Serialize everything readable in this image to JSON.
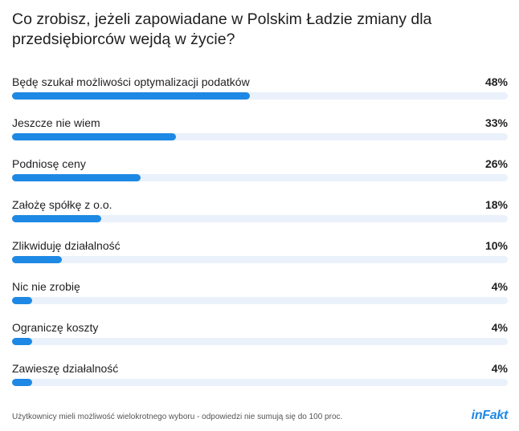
{
  "title": "Co zrobisz, jeżeli zapowiadane w Polskim Ładzie zmiany dla przedsiębiorców wejdą w życie?",
  "footnote": "Użytkownicy mieli możliwość wielokrotnego wyboru - odpowiedzi nie sumują się do 100 proc.",
  "brand": "inFakt",
  "colors": {
    "bar_fill": "#1e88e5",
    "bar_track": "#eaf1fb",
    "text": "#1f1f1f"
  },
  "chart_data": {
    "type": "bar",
    "orientation": "horizontal",
    "title": "Co zrobisz, jeżeli zapowiadane w Polskim Ładzie zmiany dla przedsiębiorców wejdą w życie?",
    "xlim": [
      0,
      100
    ],
    "unit": "%",
    "categories": [
      "Będę szukał możliwości optymalizacji podatków",
      "Jeszcze nie wiem",
      "Podniosę ceny",
      "Założę spółkę z o.o.",
      "Zlikwiduję działalność",
      "Nic nie zrobię",
      "Ograniczę koszty",
      "Zawieszę działalność"
    ],
    "values": [
      48,
      33,
      26,
      18,
      10,
      4,
      4,
      4
    ],
    "value_labels": [
      "48%",
      "33%",
      "26%",
      "18%",
      "10%",
      "4%",
      "4%",
      "4%"
    ]
  }
}
